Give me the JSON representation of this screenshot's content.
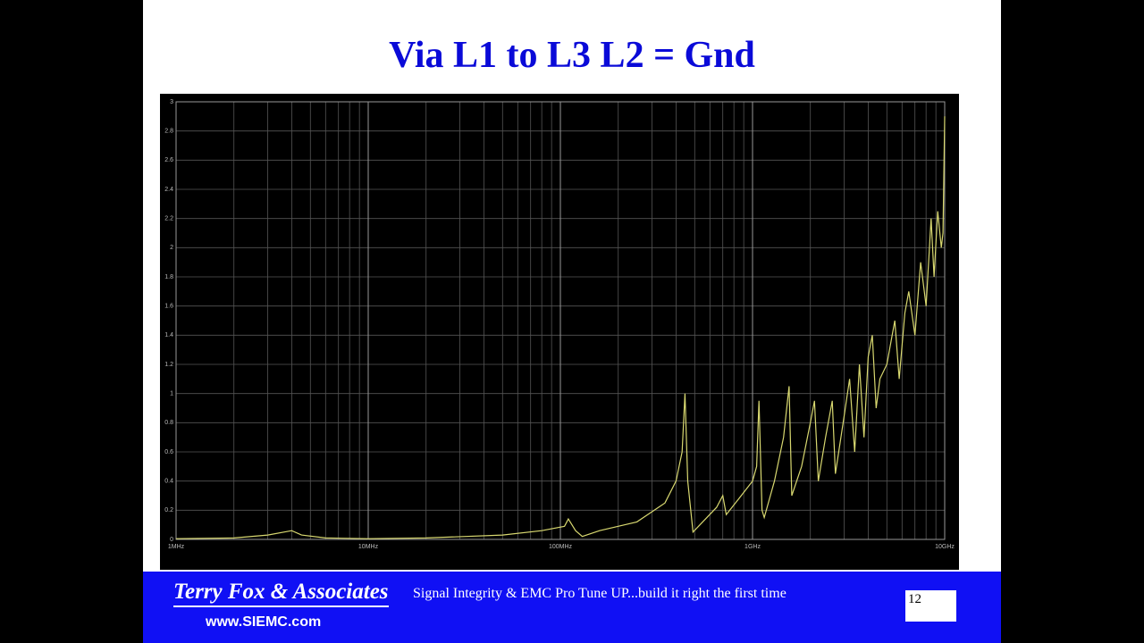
{
  "slide_title": "Via L1 to L3  L2 = Gnd",
  "chart_data": {
    "type": "line",
    "log_x": true,
    "grid": true,
    "xlim": [
      1000000,
      10000000000
    ],
    "ylim": [
      0,
      3
    ],
    "xticks": [
      {
        "value": 1000000,
        "label": "1MHz"
      },
      {
        "value": 10000000,
        "label": "10MHz"
      },
      {
        "value": 100000000,
        "label": "100MHz"
      },
      {
        "value": 1000000000,
        "label": "1GHz"
      },
      {
        "value": 10000000000,
        "label": "10GHz"
      }
    ],
    "yticks": [
      0,
      0.2,
      0.4,
      0.6,
      0.8,
      1,
      1.2,
      1.4,
      1.6,
      1.8,
      2,
      2.2,
      2.4,
      2.6,
      2.8,
      3
    ],
    "x": [
      1000000,
      2000000,
      3000000,
      4000000,
      4500000,
      6000000,
      10000000,
      20000000,
      50000000,
      80000000,
      105000000,
      110000000,
      120000000,
      130000000,
      160000000,
      250000000,
      350000000,
      400000000,
      430000000,
      445000000,
      460000000,
      490000000,
      550000000,
      650000000,
      700000000,
      730000000,
      850000000,
      1000000000,
      1050000000,
      1080000000,
      1120000000,
      1150000000,
      1300000000,
      1450000000,
      1550000000,
      1600000000,
      1800000000,
      2000000000,
      2100000000,
      2200000000,
      2400000000,
      2600000000,
      2700000000,
      3000000000,
      3200000000,
      3400000000,
      3600000000,
      3800000000,
      4000000000,
      4200000000,
      4400000000,
      4600000000,
      5000000000,
      5500000000,
      5800000000,
      6200000000,
      6500000000,
      7000000000,
      7500000000,
      8000000000,
      8500000000,
      8800000000,
      9200000000,
      9600000000,
      9800000000,
      10000000000
    ],
    "series": [
      {
        "color": "#d8d870",
        "values": [
          0.005,
          0.01,
          0.03,
          0.06,
          0.03,
          0.01,
          0.005,
          0.01,
          0.03,
          0.06,
          0.09,
          0.14,
          0.06,
          0.02,
          0.06,
          0.12,
          0.25,
          0.4,
          0.6,
          1.0,
          0.4,
          0.05,
          0.12,
          0.22,
          0.3,
          0.17,
          0.28,
          0.4,
          0.5,
          0.95,
          0.2,
          0.15,
          0.4,
          0.7,
          1.05,
          0.3,
          0.5,
          0.8,
          0.95,
          0.4,
          0.7,
          0.95,
          0.45,
          0.85,
          1.1,
          0.6,
          1.2,
          0.7,
          1.25,
          1.4,
          0.9,
          1.1,
          1.2,
          1.5,
          1.1,
          1.55,
          1.7,
          1.4,
          1.9,
          1.6,
          2.2,
          1.8,
          2.25,
          2.0,
          2.1,
          2.9
        ]
      }
    ]
  },
  "footer": {
    "company": "Terry Fox & Associates",
    "tagline": "Signal Integrity & EMC Pro Tune UP...build it right the first time",
    "website": "www.SIEMC.com",
    "page_number": "12"
  }
}
